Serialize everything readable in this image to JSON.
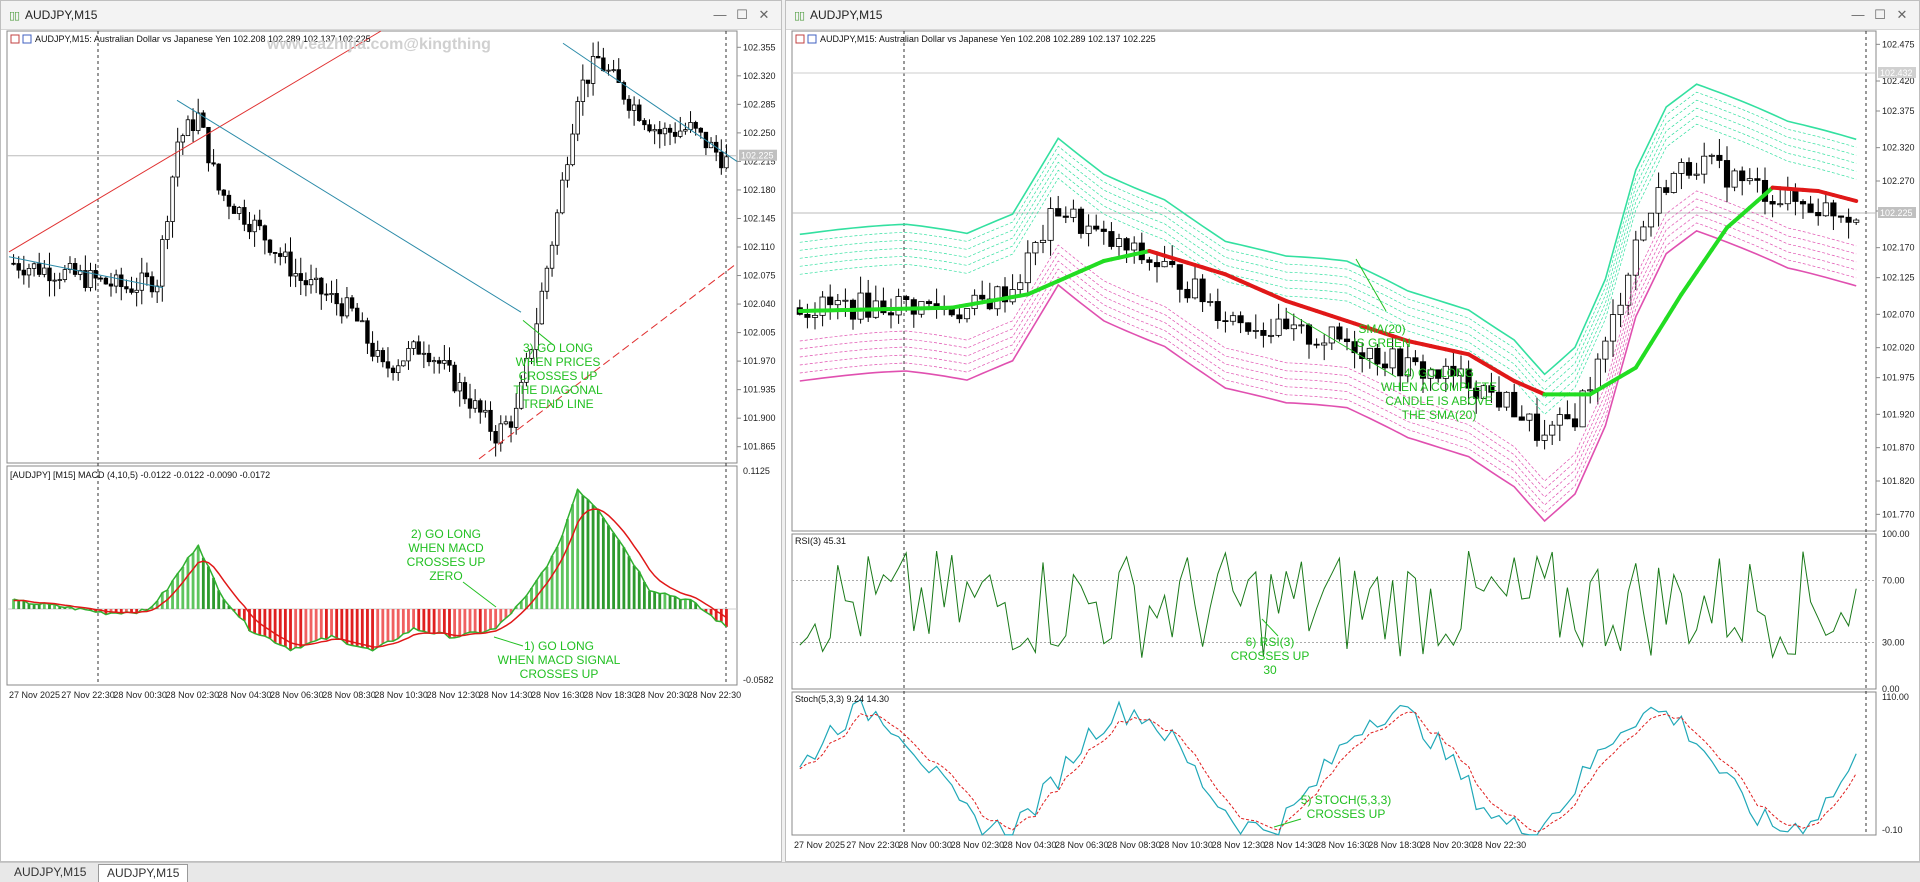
{
  "left_window": {
    "title": "AUDJPY,M15",
    "symbol_line": "AUDJPY,M15:  Australian Dollar vs Japanese Yen   102.208 102.289 102.137 102.225",
    "watermark": "www.eazhijia.com@kingthing",
    "price_ticks": [
      "102.355",
      "102.320",
      "102.285",
      "102.250",
      "102.215",
      "102.180",
      "102.145",
      "102.110",
      "102.075",
      "102.040",
      "102.005",
      "101.970",
      "101.935",
      "101.900",
      "101.865"
    ],
    "price_tag": "102.225",
    "macd_label": "[AUDJPY] [M15] MACD (4,10,5) -0.0122 -0.0122 -0.0090 -0.0172",
    "macd_ticks": [
      "0.1125",
      "-0.0582"
    ],
    "time_ticks": [
      "27 Nov 2025",
      "27 Nov 22:30",
      "28 Nov 00:30",
      "28 Nov 02:30",
      "28 Nov 04:30",
      "28 Nov 06:30",
      "28 Nov 08:30",
      "28 Nov 10:30",
      "28 Nov 12:30",
      "28 Nov 14:30",
      "28 Nov 16:30",
      "28 Nov 18:30",
      "28 Nov 20:30",
      "28 Nov 22:30"
    ],
    "notes": {
      "n3": [
        "3) GO LONG",
        "WHEN PRICES",
        "CROSSES UP",
        "THE DIAGONAL",
        "TREND LINE"
      ],
      "n2": [
        "2) GO LONG",
        "WHEN MACD",
        "CROSSES UP",
        "ZERO"
      ],
      "n1": [
        "1) GO LONG",
        "WHEN MACD SIGNAL",
        "CROSSES UP"
      ]
    }
  },
  "right_window": {
    "title": "AUDJPY,M15",
    "symbol_line": "AUDJPY,M15:  Australian Dollar vs Japanese Yen   102.208 102.289 102.137 102.225",
    "price_ticks": [
      "102.475",
      "102.420",
      "102.375",
      "102.320",
      "102.270",
      "102.225",
      "102.170",
      "102.125",
      "102.070",
      "102.020",
      "101.975",
      "101.920",
      "101.870",
      "101.820",
      "101.770"
    ],
    "price_tag": "102.225",
    "price_tag_top": "102.432",
    "rsi_label": "RSI(3) 45.31",
    "rsi_ticks": [
      "100.00",
      "70.00",
      "30.00",
      "0.00"
    ],
    "stoch_label": "Stoch(5,3,3) 9.24 14.30",
    "stoch_ticks": [
      "110.00",
      "-0.10"
    ],
    "time_ticks": [
      "27 Nov 2025",
      "27 Nov 22:30",
      "28 Nov 00:30",
      "28 Nov 02:30",
      "28 Nov 04:30",
      "28 Nov 06:30",
      "28 Nov 08:30",
      "28 Nov 10:30",
      "28 Nov 12:30",
      "28 Nov 14:30",
      "28 Nov 16:30",
      "28 Nov 18:30",
      "28 Nov 20:30",
      "28 Nov 22:30"
    ],
    "notes": {
      "sma": [
        "SMA(20)",
        "IS  GREEN"
      ],
      "n4": [
        "4) GO LONG",
        "WHEN A COMPLETE",
        "CANDLE  IS ABOVE",
        "THE  SMA(20)"
      ],
      "n6": [
        "6) RSI(3)",
        "CROSSES  UP",
        "30"
      ],
      "n5": [
        "5) STOCH(5,3,3)",
        "CROSSES  UP"
      ]
    }
  },
  "tabs": [
    "AUDJPY,M15",
    "AUDJPY,M15"
  ],
  "colors": {
    "bull_candle": "#ffffff",
    "bear_candle": "#000000",
    "macd_up": "#2e9a2e",
    "macd_down": "#e02020",
    "annotation": "#22c022",
    "sma_green": "#22dd22",
    "sma_red": "#e01818",
    "env_upper": "#33e0a0",
    "env_lower": "#e050b0",
    "rsi_line": "#1a7a1a",
    "stoch_main": "#20a8b8",
    "stoch_signal": "#e02020"
  }
}
